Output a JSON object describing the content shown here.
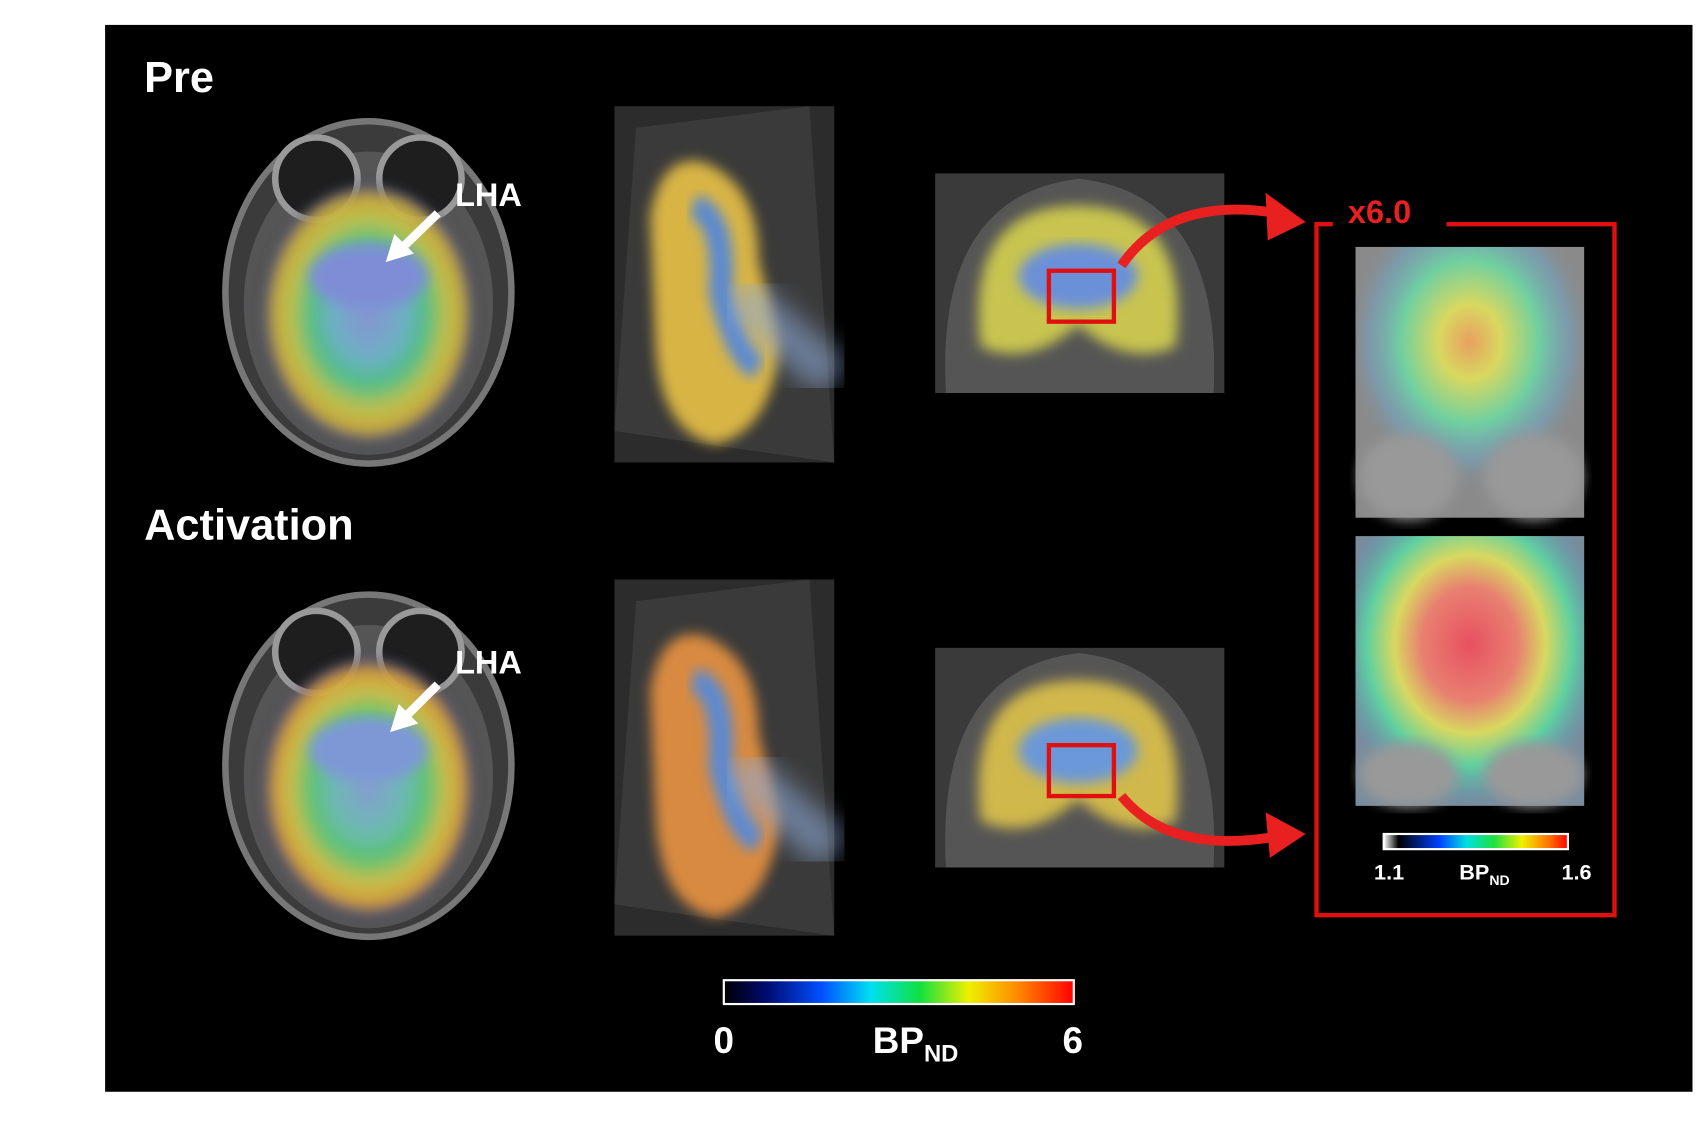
{
  "rows": [
    {
      "label": "Pre",
      "arrow_label": "LHA"
    },
    {
      "label": "Activation",
      "arrow_label": "LHA"
    }
  ],
  "zoom": {
    "factor": "x6.0",
    "colorbar": {
      "min": "1.1",
      "label": "BP",
      "subscript": "ND",
      "max": "1.6"
    }
  },
  "colorbar": {
    "min": "0",
    "label": "BP",
    "subscript": "ND",
    "max": "6"
  }
}
